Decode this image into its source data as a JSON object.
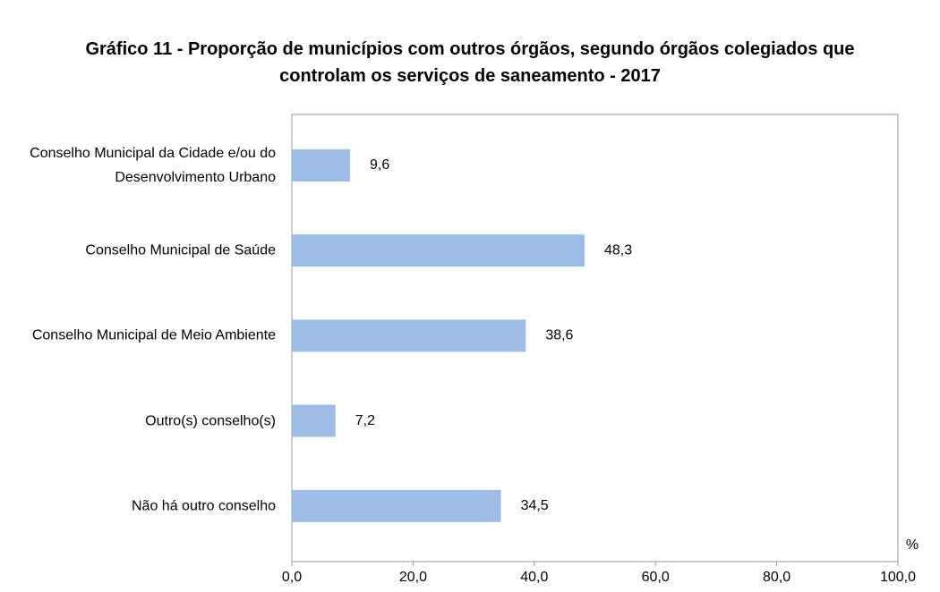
{
  "chart_data": {
    "type": "barh",
    "title": "Gráfico 11 - Proporção de municípios com outros órgãos, segundo órgãos colegiados que controlam os serviços de saneamento - 2017",
    "categories": [
      "Conselho Municipal da Cidade e/ou do Desenvolvimento Urbano",
      "Conselho Municipal de Saúde",
      "Conselho Municipal de Meio Ambiente",
      "Outro(s) conselho(s)",
      "Não há outro conselho"
    ],
    "values": [
      9.6,
      48.3,
      38.6,
      7.2,
      34.5
    ],
    "value_labels": [
      "9,6",
      "48,3",
      "38,6",
      "7,2",
      "34,5"
    ],
    "color": "#9dbde6",
    "xlabel": "%",
    "xlim": [
      0,
      100
    ],
    "xticks": [
      {
        "value": 0,
        "label": "0,0"
      },
      {
        "value": 20,
        "label": "20,0"
      },
      {
        "value": 40,
        "label": "40,0"
      },
      {
        "value": 60,
        "label": "60,0"
      },
      {
        "value": 80,
        "label": "80,0"
      },
      {
        "value": 100,
        "label": "100,0"
      }
    ],
    "grid": false
  }
}
